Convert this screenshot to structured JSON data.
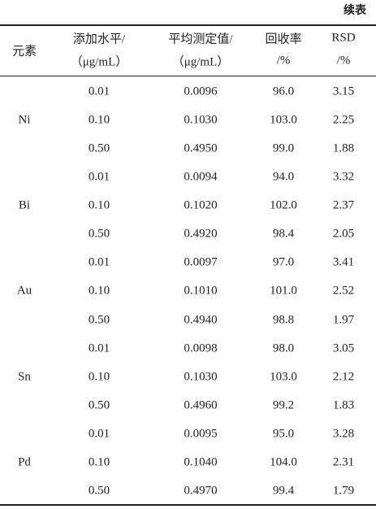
{
  "header": {
    "continued": "续表"
  },
  "columns": [
    {
      "lines": [
        "元素"
      ]
    },
    {
      "lines": [
        "添加水平/",
        "（μg/mL）"
      ]
    },
    {
      "lines": [
        "平均测定值/",
        "（μg/mL）"
      ]
    },
    {
      "lines": [
        "回收率",
        "/%"
      ]
    },
    {
      "lines": [
        "RSD",
        "/%"
      ]
    }
  ],
  "groups": [
    {
      "element": "Ni",
      "rows": [
        [
          "0.01",
          "0.0096",
          "96.0",
          "3.15"
        ],
        [
          "0.10",
          "0.1030",
          "103.0",
          "2.25"
        ],
        [
          "0.50",
          "0.4950",
          "99.0",
          "1.88"
        ]
      ]
    },
    {
      "element": "Bi",
      "rows": [
        [
          "0.01",
          "0.0094",
          "94.0",
          "3.32"
        ],
        [
          "0.10",
          "0.1020",
          "102.0",
          "2.37"
        ],
        [
          "0.50",
          "0.4920",
          "98.4",
          "2.05"
        ]
      ]
    },
    {
      "element": "Au",
      "rows": [
        [
          "0.01",
          "0.0097",
          "97.0",
          "3.41"
        ],
        [
          "0.10",
          "0.1010",
          "101.0",
          "2.52"
        ],
        [
          "0.50",
          "0.4940",
          "98.8",
          "1.97"
        ]
      ]
    },
    {
      "element": "Sn",
      "rows": [
        [
          "0.01",
          "0.0098",
          "98.0",
          "3.05"
        ],
        [
          "0.10",
          "0.1030",
          "103.0",
          "2.12"
        ],
        [
          "0.50",
          "0.4960",
          "99.2",
          "1.83"
        ]
      ]
    },
    {
      "element": "Pd",
      "rows": [
        [
          "0.01",
          "0.0095",
          "95.0",
          "3.28"
        ],
        [
          "0.10",
          "0.1040",
          "104.0",
          "2.31"
        ],
        [
          "0.50",
          "0.4970",
          "99.4",
          "1.79"
        ]
      ]
    }
  ]
}
